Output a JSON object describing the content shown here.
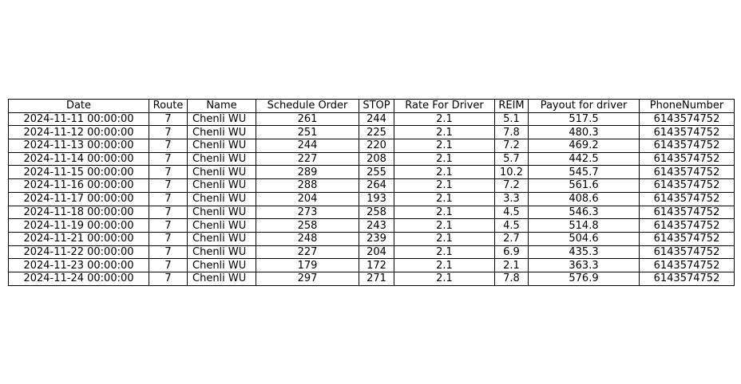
{
  "chart_data": {
    "type": "table",
    "columns": [
      "Date",
      "Route",
      "Name",
      "Schedule Order",
      "STOP",
      "Rate For Driver",
      "REIM",
      "Payout for driver",
      "PhoneNumber"
    ],
    "rows": [
      [
        "2024-11-11 00:00:00",
        "7",
        "Chenli WU",
        "261",
        "244",
        "2.1",
        "5.1",
        "517.5",
        "6143574752"
      ],
      [
        "2024-11-12 00:00:00",
        "7",
        "Chenli WU",
        "251",
        "225",
        "2.1",
        "7.8",
        "480.3",
        "6143574752"
      ],
      [
        "2024-11-13 00:00:00",
        "7",
        "Chenli WU",
        "244",
        "220",
        "2.1",
        "7.2",
        "469.2",
        "6143574752"
      ],
      [
        "2024-11-14 00:00:00",
        "7",
        "Chenli WU",
        "227",
        "208",
        "2.1",
        "5.7",
        "442.5",
        "6143574752"
      ],
      [
        "2024-11-15 00:00:00",
        "7",
        "Chenli WU",
        "289",
        "255",
        "2.1",
        "10.2",
        "545.7",
        "6143574752"
      ],
      [
        "2024-11-16 00:00:00",
        "7",
        "Chenli WU",
        "288",
        "264",
        "2.1",
        "7.2",
        "561.6",
        "6143574752"
      ],
      [
        "2024-11-17 00:00:00",
        "7",
        "Chenli WU",
        "204",
        "193",
        "2.1",
        "3.3",
        "408.6",
        "6143574752"
      ],
      [
        "2024-11-18 00:00:00",
        "7",
        "Chenli WU",
        "273",
        "258",
        "2.1",
        "4.5",
        "546.3",
        "6143574752"
      ],
      [
        "2024-11-19 00:00:00",
        "7",
        "Chenli WU",
        "258",
        "243",
        "2.1",
        "4.5",
        "514.8",
        "6143574752"
      ],
      [
        "2024-11-21 00:00:00",
        "7",
        "Chenli WU",
        "248",
        "239",
        "2.1",
        "2.7",
        "504.6",
        "6143574752"
      ],
      [
        "2024-11-22 00:00:00",
        "7",
        "Chenli WU",
        "227",
        "204",
        "2.1",
        "6.9",
        "435.3",
        "6143574752"
      ],
      [
        "2024-11-23 00:00:00",
        "7",
        "Chenli WU",
        "179",
        "172",
        "2.1",
        "2.1",
        "363.3",
        "6143574752"
      ],
      [
        "2024-11-24 00:00:00",
        "7",
        "Chenli WU",
        "297",
        "271",
        "2.1",
        "7.8",
        "576.9",
        "6143574752"
      ]
    ]
  }
}
